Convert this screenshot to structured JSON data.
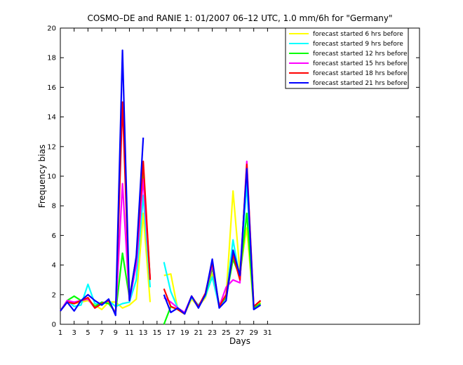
{
  "chart_data": {
    "type": "line",
    "title": "COSMO–DE and RANIE 1: 01/2007 06–12 UTC, 1.0 mm/6h for \"Germany\"",
    "xlabel": "Days",
    "ylabel": "Frequency bias",
    "xlim": [
      1,
      53
    ],
    "ylim": [
      0,
      20
    ],
    "xticks": [
      1,
      3,
      5,
      7,
      9,
      11,
      13,
      15,
      17,
      19,
      21,
      23,
      25,
      27,
      29,
      31
    ],
    "yticks": [
      0,
      2,
      4,
      6,
      8,
      10,
      12,
      14,
      16,
      18,
      20
    ],
    "grid": false,
    "legend_position": "top-right",
    "x": [
      1,
      2,
      3,
      4,
      5,
      6,
      7,
      8,
      9,
      10,
      11,
      12,
      13,
      14,
      15,
      16,
      17,
      18,
      19,
      20,
      21,
      22,
      23,
      24,
      25,
      26,
      27,
      28,
      29,
      30
    ],
    "series": [
      {
        "name": "forecast started 6 hrs before",
        "color": "#ffff00",
        "values": [
          0.9,
          1.5,
          1.4,
          1.5,
          1.6,
          1.3,
          1.0,
          1.5,
          1.5,
          1.1,
          1.3,
          1.7,
          7.5,
          1.5,
          null,
          3.3,
          3.4,
          1.0,
          0.7,
          1.7,
          1.2,
          1.8,
          3.4,
          1.3,
          1.9,
          9.0,
          3.5,
          6.5,
          1.1,
          1.5
        ]
      },
      {
        "name": "forecast started 9 hrs before",
        "color": "#00ffff",
        "values": [
          0.9,
          1.6,
          1.2,
          1.3,
          2.7,
          1.4,
          1.3,
          1.6,
          1.2,
          1.4,
          1.5,
          3.0,
          8.7,
          2.5,
          null,
          4.2,
          2.2,
          1.1,
          0.8,
          1.8,
          1.3,
          1.9,
          3.2,
          1.2,
          1.8,
          5.7,
          3.0,
          9.5,
          1.2,
          1.6
        ]
      },
      {
        "name": "forecast started 12 hrs before",
        "color": "#00ff00",
        "values": [
          0.9,
          1.6,
          1.9,
          1.6,
          1.7,
          1.2,
          1.5,
          1.4,
          0.8,
          4.8,
          1.8,
          4.5,
          10.5,
          3.0,
          null,
          0.0,
          1.2,
          1.0,
          0.7,
          1.9,
          1.2,
          2.0,
          3.8,
          1.3,
          1.8,
          4.4,
          3.2,
          7.5,
          1.1,
          1.4
        ]
      },
      {
        "name": "forecast started 15 hrs before",
        "color": "#ff00ff",
        "values": [
          0.9,
          1.6,
          1.5,
          1.6,
          1.7,
          1.1,
          1.4,
          1.6,
          0.7,
          9.5,
          1.6,
          4.0,
          9.8,
          3.1,
          null,
          1.8,
          1.5,
          1.1,
          0.8,
          1.9,
          1.2,
          2.1,
          4.0,
          1.2,
          2.5,
          3.0,
          2.8,
          11.0,
          1.2,
          1.6
        ]
      },
      {
        "name": "forecast started 18 hrs before",
        "color": "#ff0000",
        "values": [
          0.9,
          1.5,
          1.4,
          1.6,
          1.8,
          1.1,
          1.4,
          1.6,
          0.7,
          15.0,
          1.7,
          4.5,
          11.0,
          3.0,
          null,
          2.4,
          1.2,
          1.0,
          0.7,
          1.9,
          1.2,
          2.1,
          4.2,
          1.2,
          2.0,
          4.7,
          3.0,
          10.8,
          1.2,
          1.6
        ]
      },
      {
        "name": "forecast started 21 hrs before",
        "color": "#0000ff",
        "values": [
          0.9,
          1.5,
          0.9,
          1.6,
          2.0,
          1.6,
          1.3,
          1.7,
          0.6,
          18.5,
          1.6,
          4.6,
          12.6,
          null,
          null,
          2.0,
          0.8,
          1.1,
          0.7,
          1.9,
          1.1,
          2.0,
          4.4,
          1.1,
          1.6,
          5.0,
          3.3,
          10.5,
          1.0,
          1.3
        ]
      }
    ]
  }
}
